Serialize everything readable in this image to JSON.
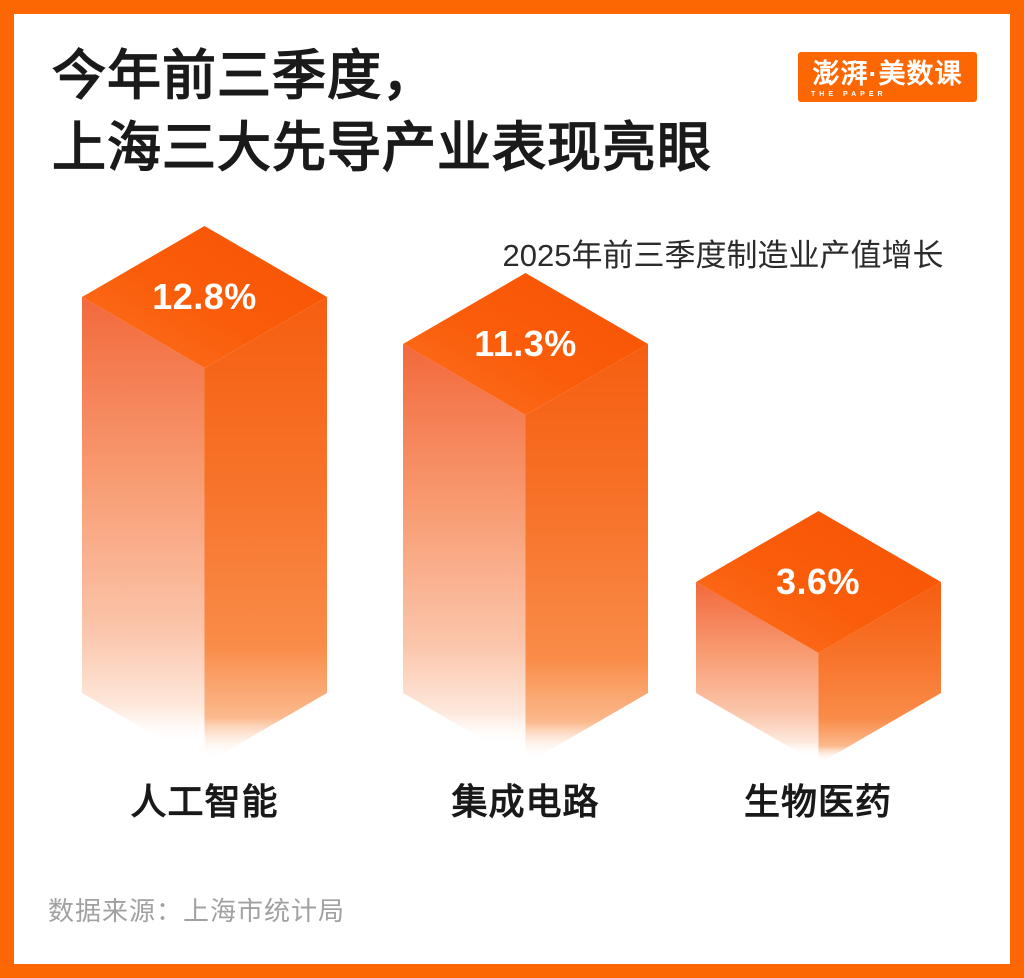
{
  "header": {
    "title_line1": "今年前三季度，",
    "title_line2": "上海三大先导产业表现亮眼",
    "logo": {
      "main": "澎湃·美数课",
      "sub": "THE PAPER"
    }
  },
  "chart_data": {
    "type": "bar",
    "style": "3d-isometric-columns",
    "title": "2025年前三季度制造业产值增长",
    "categories": [
      "人工智能",
      "集成电路",
      "生物医药"
    ],
    "values": [
      12.8,
      11.3,
      3.6
    ],
    "value_labels": [
      "12.8%",
      "11.3%",
      "3.6%"
    ],
    "unit": "%",
    "legend": "none",
    "grid": "off",
    "colors": {
      "top_face": "#f95b07",
      "left_face_top": "#f2693c",
      "right_face_top": "#f65e10",
      "fade_to": "#ffffff",
      "value_text": "#ffffff"
    }
  },
  "footer": {
    "source": "数据来源：上海市统计局"
  },
  "colors": {
    "brand_orange": "#fc6703",
    "title_text": "#1a1a1a",
    "subtitle_text": "#2b2b2b",
    "category_text": "#191919",
    "source_text": "#a1a1a1",
    "background": "#ffffff"
  }
}
